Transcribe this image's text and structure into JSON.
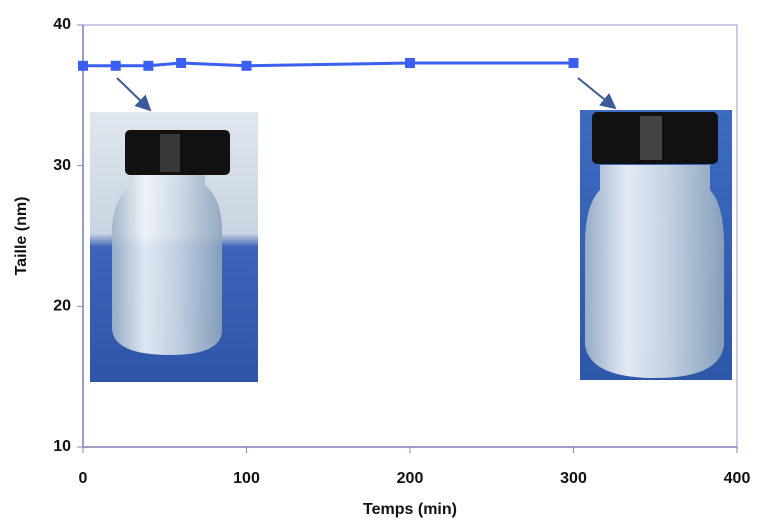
{
  "chart_data": {
    "type": "line",
    "x_label": "Temps (min)",
    "y_label": "Taille (nm)",
    "x": [
      0,
      20,
      40,
      60,
      100,
      200,
      300
    ],
    "series": [
      {
        "color": "#3b5ff0",
        "values": [
          37.1,
          37.1,
          37.1,
          37.3,
          37.1,
          37.3,
          37.3
        ]
      }
    ],
    "xlim": [
      0,
      400
    ],
    "xticks": [
      0,
      100,
      200,
      300,
      400
    ],
    "ylim": [
      10,
      40
    ],
    "yticks": [
      10,
      20,
      30,
      40
    ]
  }
}
